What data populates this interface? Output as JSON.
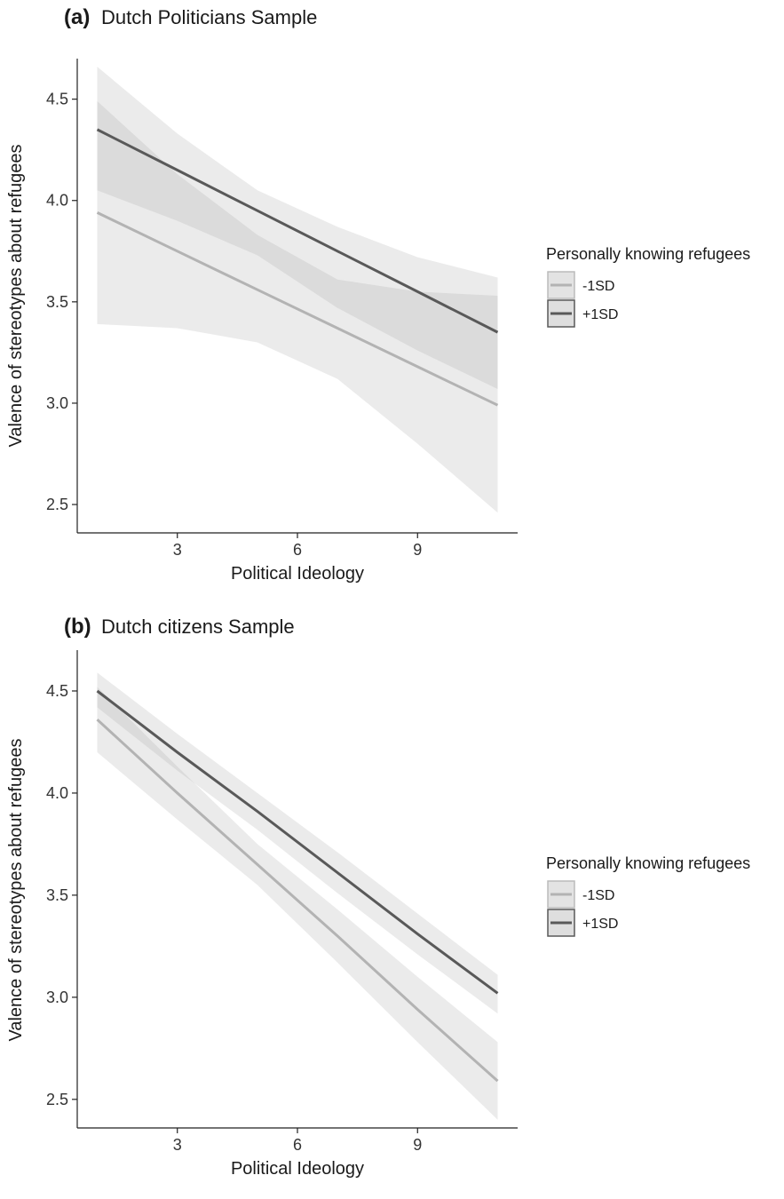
{
  "chart_data": [
    {
      "type": "line",
      "panel_label": "(a)",
      "title": "Dutch Politicians Sample",
      "xlabel": "Political Ideology",
      "ylabel": "Valence of stereotypes about refugees",
      "xlim": [
        0.5,
        11.5
      ],
      "ylim": [
        2.36,
        4.7
      ],
      "x_ticks": [
        3,
        6,
        9
      ],
      "y_ticks": [
        2.5,
        3.0,
        3.5,
        4.0,
        4.5
      ],
      "y_tick_labels": [
        "2.5",
        "3.0",
        "3.5",
        "4.0",
        "4.5"
      ],
      "grid": false,
      "legend": {
        "title": "Personally knowing refugees",
        "placement": "right",
        "items": [
          "-1SD",
          "+1SD"
        ]
      },
      "series": [
        {
          "name": "-1SD",
          "color": "#b3b3b3",
          "x": [
            1,
            3,
            5,
            7,
            9,
            11
          ],
          "y": [
            3.94,
            3.75,
            3.56,
            3.37,
            3.18,
            2.99
          ],
          "lower": [
            3.39,
            3.37,
            3.3,
            3.12,
            2.8,
            2.46
          ],
          "upper": [
            4.49,
            4.13,
            3.83,
            3.61,
            3.55,
            3.53
          ]
        },
        {
          "name": "+1SD",
          "color": "#595959",
          "x": [
            1,
            3,
            5,
            7,
            9,
            11
          ],
          "y": [
            4.35,
            4.15,
            3.95,
            3.75,
            3.55,
            3.35
          ],
          "lower": [
            4.05,
            3.9,
            3.73,
            3.47,
            3.26,
            3.07
          ],
          "upper": [
            4.66,
            4.33,
            4.05,
            3.87,
            3.72,
            3.62
          ]
        }
      ]
    },
    {
      "type": "line",
      "panel_label": "(b)",
      "title": "Dutch citizens Sample",
      "xlabel": "Political Ideology",
      "ylabel": "Valence of stereotypes about refugees",
      "xlim": [
        0.5,
        11.5
      ],
      "ylim": [
        2.36,
        4.7
      ],
      "x_ticks": [
        3,
        6,
        9
      ],
      "y_ticks": [
        2.5,
        3.0,
        3.5,
        4.0,
        4.5
      ],
      "y_tick_labels": [
        "2.5",
        "3.0",
        "3.5",
        "4.0",
        "4.5"
      ],
      "grid": false,
      "legend": {
        "title": "Personally knowing refugees",
        "placement": "right",
        "items": [
          "-1SD",
          "+1SD"
        ]
      },
      "series": [
        {
          "name": "-1SD",
          "color": "#b3b3b3",
          "x": [
            1,
            3,
            5,
            7,
            9,
            11
          ],
          "y": [
            4.36,
            4.0,
            3.65,
            3.3,
            2.94,
            2.59
          ],
          "lower": [
            4.2,
            3.87,
            3.55,
            3.17,
            2.78,
            2.4
          ],
          "upper": [
            4.52,
            4.13,
            3.75,
            3.43,
            3.1,
            2.78
          ]
        },
        {
          "name": "+1SD",
          "color": "#595959",
          "x": [
            1,
            3,
            5,
            7,
            9,
            11
          ],
          "y": [
            4.5,
            4.2,
            3.91,
            3.61,
            3.31,
            3.02
          ],
          "lower": [
            4.42,
            4.11,
            3.82,
            3.51,
            3.21,
            2.92
          ],
          "upper": [
            4.59,
            4.29,
            4.0,
            3.71,
            3.41,
            3.11
          ]
        }
      ]
    }
  ]
}
